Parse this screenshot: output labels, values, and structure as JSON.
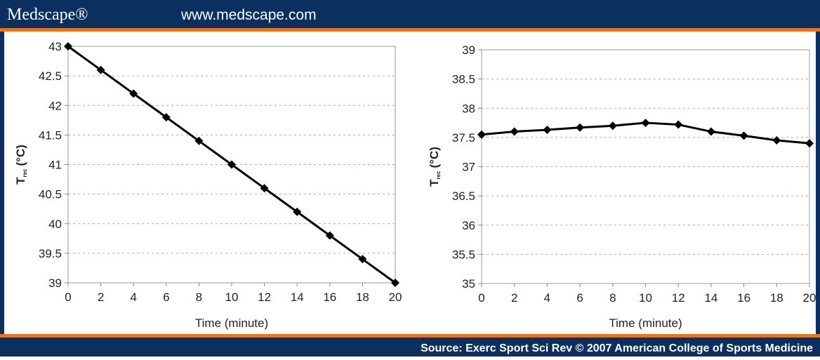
{
  "header": {
    "brand": "Medscape®",
    "url": "www.medscape.com"
  },
  "footer": {
    "source": "Source: Exerc Sport Sci Rev © 2007 American College of Sports Medicine"
  },
  "chart_data": [
    {
      "type": "line",
      "x_label": "Time (minute)",
      "y_label_parts": [
        "T",
        "rec",
        "(°C)"
      ],
      "x": [
        0,
        2,
        4,
        6,
        8,
        10,
        12,
        14,
        16,
        18,
        20
      ],
      "values": [
        43,
        42.6,
        42.2,
        41.8,
        41.4,
        41,
        40.6,
        40.2,
        39.8,
        39.4,
        39
      ],
      "color": "#000000",
      "grid": true,
      "xlim": [
        0,
        20
      ],
      "xticks": [
        0,
        2,
        4,
        6,
        8,
        10,
        12,
        14,
        16,
        18,
        20
      ],
      "ylim": [
        39,
        43
      ],
      "yticks": [
        39,
        39.5,
        40,
        40.5,
        41,
        41.5,
        42,
        42.5,
        43
      ]
    },
    {
      "type": "line",
      "x_label": "Time (minute)",
      "y_label_parts": [
        "T",
        "rec",
        "(°C)"
      ],
      "x": [
        0,
        2,
        4,
        6,
        8,
        10,
        12,
        14,
        16,
        18,
        20
      ],
      "values": [
        37.55,
        37.6,
        37.63,
        37.67,
        37.7,
        37.75,
        37.72,
        37.6,
        37.53,
        37.45,
        37.4
      ],
      "color": "#000000",
      "grid": true,
      "xlim": [
        0,
        20
      ],
      "xticks": [
        0,
        2,
        4,
        6,
        8,
        10,
        12,
        14,
        16,
        18,
        20
      ],
      "ylim": [
        35,
        39
      ],
      "yticks": [
        35,
        35.5,
        36,
        36.5,
        37,
        37.5,
        38,
        38.5,
        39
      ]
    }
  ]
}
